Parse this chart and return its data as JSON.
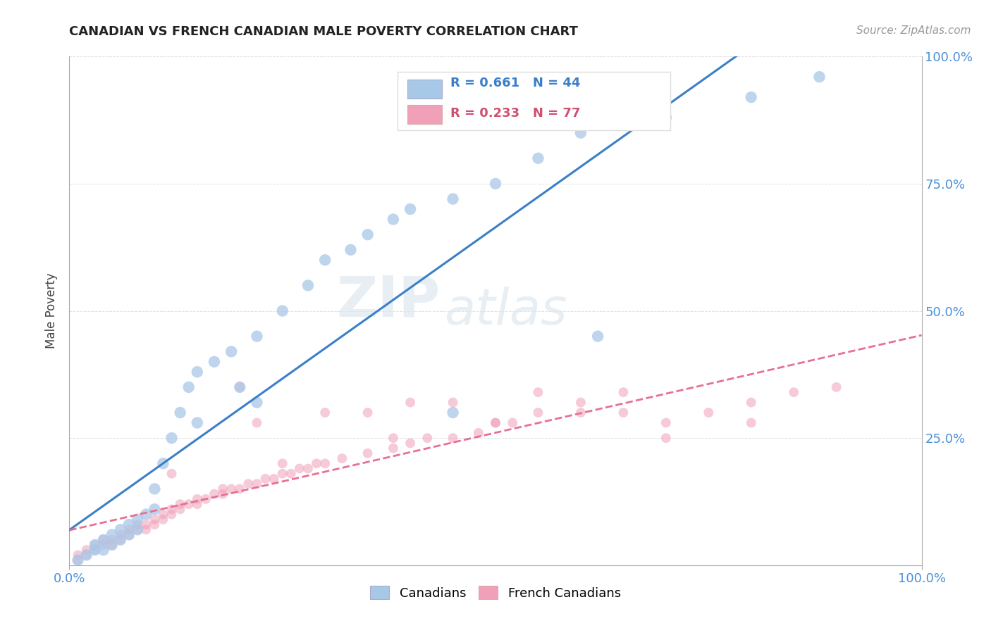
{
  "title": "CANADIAN VS FRENCH CANADIAN MALE POVERTY CORRELATION CHART",
  "source": "Source: ZipAtlas.com",
  "ylabel": "Male Poverty",
  "xlim": [
    0,
    1
  ],
  "ylim": [
    0,
    1
  ],
  "x_tick_labels": [
    "0.0%",
    "100.0%"
  ],
  "y_tick_labels": [
    "25.0%",
    "50.0%",
    "75.0%",
    "100.0%"
  ],
  "canadians_R": 0.661,
  "canadians_N": 44,
  "french_R": 0.233,
  "french_N": 77,
  "blue_color": "#a8c8e8",
  "pink_color": "#f0a0b8",
  "blue_line_color": "#3a7fc8",
  "pink_line_color": "#e87090",
  "legend_blue_text_color": "#3a7fc8",
  "legend_pink_text_color": "#d05070",
  "title_color": "#222222",
  "grid_color": "#cccccc",
  "tick_color": "#4a90d9",
  "background": "#ffffff",
  "canadians_x": [
    0.01,
    0.02,
    0.03,
    0.03,
    0.04,
    0.04,
    0.05,
    0.05,
    0.06,
    0.06,
    0.07,
    0.07,
    0.08,
    0.08,
    0.09,
    0.1,
    0.1,
    0.11,
    0.12,
    0.13,
    0.14,
    0.15,
    0.17,
    0.19,
    0.2,
    0.22,
    0.25,
    0.28,
    0.3,
    0.33,
    0.35,
    0.38,
    0.4,
    0.45,
    0.5,
    0.55,
    0.6,
    0.7,
    0.8,
    0.88,
    0.15,
    0.22,
    0.45,
    0.62
  ],
  "canadians_y": [
    0.01,
    0.02,
    0.03,
    0.04,
    0.03,
    0.05,
    0.04,
    0.06,
    0.05,
    0.07,
    0.06,
    0.08,
    0.07,
    0.09,
    0.1,
    0.11,
    0.15,
    0.2,
    0.25,
    0.3,
    0.35,
    0.38,
    0.4,
    0.42,
    0.35,
    0.45,
    0.5,
    0.55,
    0.6,
    0.62,
    0.65,
    0.68,
    0.7,
    0.72,
    0.75,
    0.8,
    0.85,
    0.88,
    0.92,
    0.96,
    0.28,
    0.32,
    0.3,
    0.45
  ],
  "french_x": [
    0.01,
    0.01,
    0.02,
    0.02,
    0.03,
    0.03,
    0.04,
    0.04,
    0.05,
    0.05,
    0.06,
    0.06,
    0.07,
    0.07,
    0.08,
    0.08,
    0.09,
    0.09,
    0.1,
    0.1,
    0.11,
    0.11,
    0.12,
    0.12,
    0.13,
    0.13,
    0.14,
    0.15,
    0.15,
    0.16,
    0.17,
    0.18,
    0.18,
    0.19,
    0.2,
    0.21,
    0.22,
    0.23,
    0.24,
    0.25,
    0.26,
    0.27,
    0.28,
    0.29,
    0.3,
    0.32,
    0.35,
    0.38,
    0.4,
    0.42,
    0.45,
    0.48,
    0.5,
    0.55,
    0.6,
    0.65,
    0.7,
    0.75,
    0.8,
    0.85,
    0.9,
    0.2,
    0.3,
    0.4,
    0.5,
    0.6,
    0.7,
    0.8,
    0.22,
    0.35,
    0.45,
    0.55,
    0.12,
    0.25,
    0.38,
    0.52,
    0.65
  ],
  "french_y": [
    0.01,
    0.02,
    0.02,
    0.03,
    0.03,
    0.04,
    0.04,
    0.05,
    0.04,
    0.05,
    0.05,
    0.06,
    0.06,
    0.07,
    0.07,
    0.08,
    0.07,
    0.08,
    0.08,
    0.09,
    0.09,
    0.1,
    0.1,
    0.11,
    0.11,
    0.12,
    0.12,
    0.12,
    0.13,
    0.13,
    0.14,
    0.14,
    0.15,
    0.15,
    0.15,
    0.16,
    0.16,
    0.17,
    0.17,
    0.18,
    0.18,
    0.19,
    0.19,
    0.2,
    0.2,
    0.21,
    0.22,
    0.23,
    0.24,
    0.25,
    0.25,
    0.26,
    0.28,
    0.3,
    0.32,
    0.34,
    0.28,
    0.3,
    0.32,
    0.34,
    0.35,
    0.35,
    0.3,
    0.32,
    0.28,
    0.3,
    0.25,
    0.28,
    0.28,
    0.3,
    0.32,
    0.34,
    0.18,
    0.2,
    0.25,
    0.28,
    0.3
  ],
  "watermark_zip": "ZIP",
  "watermark_atlas": "atlas"
}
